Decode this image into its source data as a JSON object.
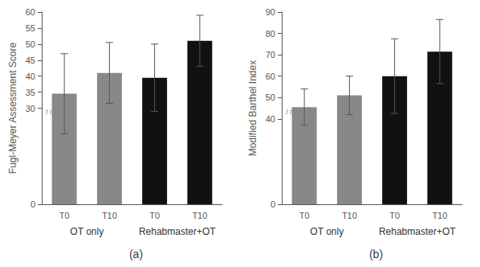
{
  "chart_data": [
    {
      "type": "bar",
      "subtitle": "(a)",
      "ylabel": "Fugl-Meyer Assessment Score",
      "categories": [
        "T0",
        "T10",
        "T0",
        "T10"
      ],
      "groups": [
        "OT only",
        "Rehabmaster+OT"
      ],
      "values": [
        34.5,
        41.0,
        39.5,
        51.0
      ],
      "errors": [
        12.5,
        9.5,
        10.5,
        8.0
      ],
      "colors": [
        "#888888",
        "#888888",
        "#111111",
        "#111111"
      ],
      "ylim": [
        0,
        60
      ],
      "yticks": [
        0,
        30,
        35,
        40,
        45,
        50,
        55,
        60
      ],
      "annotations": [
        "t t"
      ],
      "grid": false
    },
    {
      "type": "bar",
      "subtitle": "(b)",
      "ylabel": "Modified Barthel Index",
      "categories": [
        "T0",
        "T10",
        "T0",
        "T10"
      ],
      "groups": [
        "OT only",
        "Rehabmaster+OT"
      ],
      "values": [
        45.5,
        51.0,
        60.0,
        71.5
      ],
      "errors": [
        8.5,
        9.0,
        17.5,
        15.0
      ],
      "colors": [
        "#888888",
        "#888888",
        "#111111",
        "#111111"
      ],
      "ylim": [
        0,
        90
      ],
      "yticks": [
        0,
        40,
        50,
        60,
        70,
        80,
        90
      ],
      "annotations": [
        "t t"
      ],
      "grid": false
    }
  ]
}
